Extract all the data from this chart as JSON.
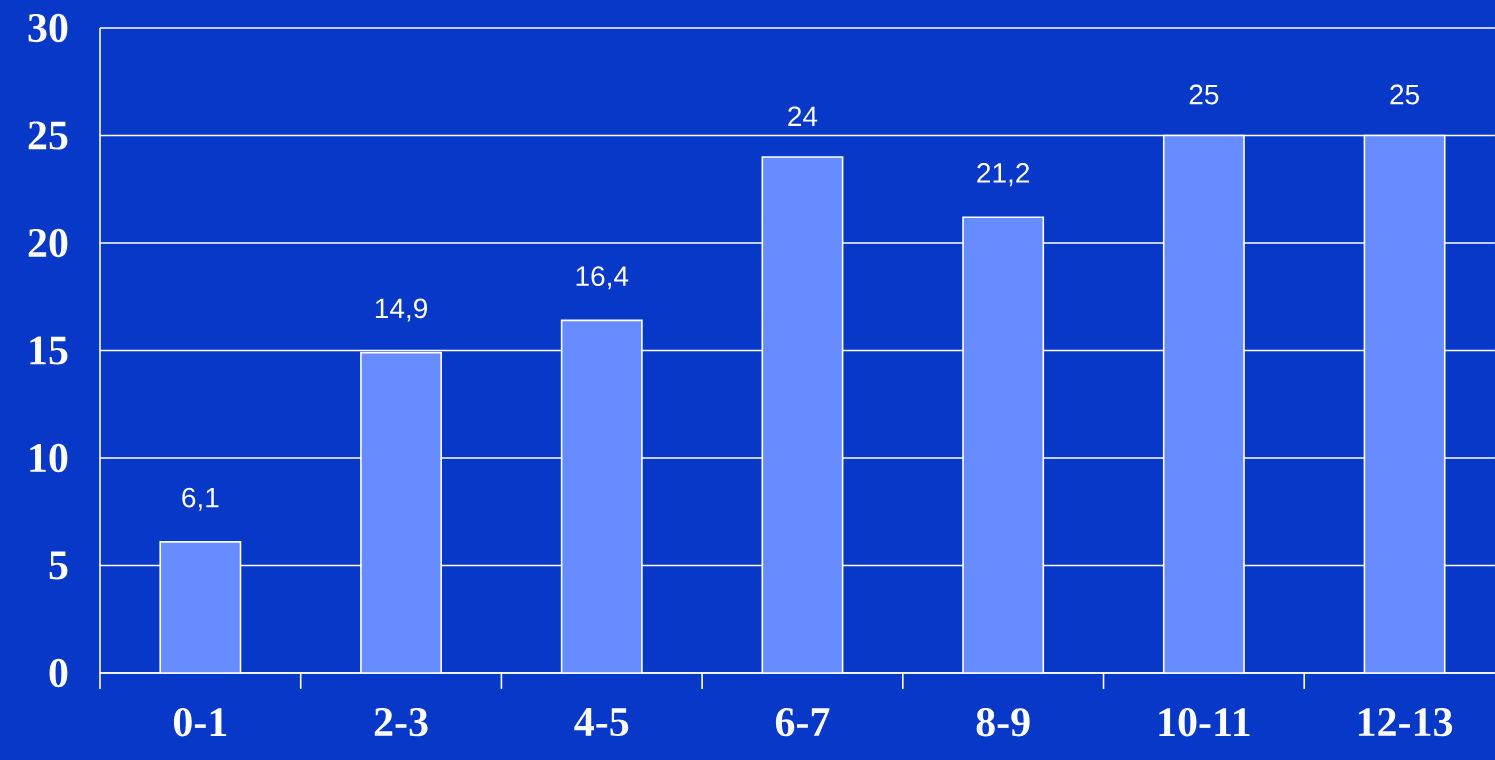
{
  "chart_data": {
    "type": "bar",
    "categories": [
      "0-1",
      "2-3",
      "4-5",
      "6-7",
      "8-9",
      "10-11",
      "12-13"
    ],
    "values": [
      6.1,
      14.9,
      16.4,
      24,
      21.2,
      25,
      25
    ],
    "value_labels": [
      "6,1",
      "14,9",
      "16,4",
      "24",
      "21,2",
      "25",
      "25"
    ],
    "color": "#668cff",
    "ylim": [
      0,
      30
    ],
    "yticks": [
      0,
      5,
      10,
      15,
      20,
      25,
      30
    ],
    "grid": "y"
  }
}
